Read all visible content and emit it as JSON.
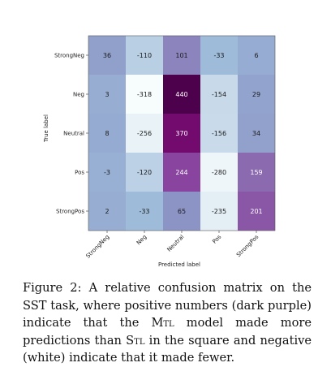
{
  "chart_data": {
    "type": "heatmap",
    "xlabel": "Predicted label",
    "ylabel": "True label",
    "x_categories": [
      "StrongNeg",
      "Neg",
      "Neutral",
      "Pos",
      "StrongPos"
    ],
    "y_categories": [
      "StrongNeg",
      "Neg",
      "Neutral",
      "Pos",
      "StrongPos"
    ],
    "values": [
      [
        36,
        -110,
        101,
        -33,
        6
      ],
      [
        3,
        -318,
        440,
        -154,
        29
      ],
      [
        8,
        -256,
        370,
        -156,
        34
      ],
      [
        -3,
        -120,
        244,
        -280,
        159
      ],
      [
        2,
        -33,
        65,
        -235,
        201
      ]
    ],
    "value_range": [
      -318,
      440
    ],
    "colors": {
      "min": "#f7fcfd",
      "mid": "#8c96c6",
      "max": "#4d004b"
    }
  },
  "caption": {
    "prefix": "Figure 2: A relative confusion matrix on the SST task, where positive numbers (dark purple) indicate that the ",
    "mtl": "Mtl",
    "middle": " model made more predictions than ",
    "stl": "Stl",
    "suffix": " in the square and negative (white) indicate that it made fewer."
  }
}
